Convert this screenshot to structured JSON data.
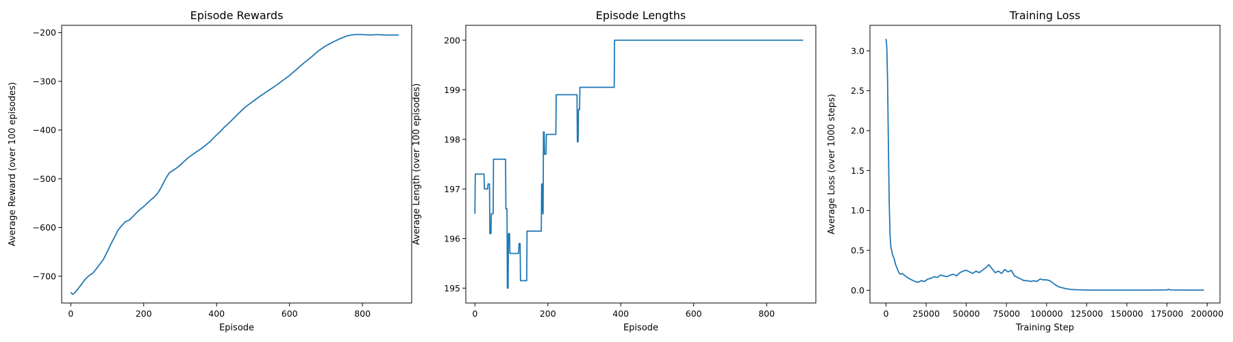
{
  "chart_data": [
    {
      "type": "line",
      "title": "Episode Rewards",
      "xlabel": "Episode",
      "ylabel": "Average Reward (over 100 episodes)",
      "xlim": [
        -25,
        935
      ],
      "ylim": [
        -755,
        -185
      ],
      "xticks": [
        0,
        200,
        400,
        600,
        800
      ],
      "yticks": [
        -700,
        -600,
        -500,
        -400,
        -300,
        -200
      ],
      "color": "#1f77b4",
      "x": [
        0,
        5,
        10,
        20,
        30,
        40,
        50,
        60,
        70,
        80,
        90,
        100,
        110,
        120,
        130,
        140,
        150,
        160,
        170,
        180,
        190,
        200,
        210,
        220,
        230,
        240,
        250,
        260,
        270,
        280,
        290,
        300,
        320,
        340,
        360,
        380,
        400,
        410,
        420,
        440,
        460,
        480,
        500,
        520,
        540,
        560,
        580,
        600,
        620,
        640,
        660,
        680,
        700,
        720,
        740,
        760,
        780,
        800,
        820,
        840,
        860,
        880,
        900
      ],
      "y": [
        -733,
        -737,
        -735,
        -726,
        -716,
        -706,
        -699,
        -694,
        -685,
        -675,
        -665,
        -650,
        -634,
        -620,
        -605,
        -596,
        -588,
        -585,
        -578,
        -570,
        -563,
        -557,
        -550,
        -543,
        -537,
        -528,
        -515,
        -500,
        -488,
        -483,
        -478,
        -472,
        -458,
        -447,
        -437,
        -425,
        -410,
        -403,
        -395,
        -381,
        -366,
        -352,
        -341,
        -330,
        -320,
        -310,
        -299,
        -288,
        -275,
        -262,
        -250,
        -237,
        -227,
        -219,
        -212,
        -206,
        -204,
        -204,
        -205,
        -204,
        -205,
        -205,
        -205
      ]
    },
    {
      "type": "line",
      "title": "Episode Lengths",
      "xlabel": "Episode",
      "ylabel": "Average Length (over 100 episodes)",
      "xlim": [
        -25,
        935
      ],
      "ylim": [
        194.7,
        200.3
      ],
      "xticks": [
        0,
        200,
        400,
        600,
        800
      ],
      "yticks": [
        195,
        196,
        197,
        198,
        199,
        200
      ],
      "color": "#1f77b4",
      "x": [
        0,
        1,
        25,
        26,
        35,
        36,
        40,
        41,
        44,
        45,
        50,
        51,
        84,
        85,
        88,
        89,
        91,
        92,
        95,
        96,
        98,
        99,
        120,
        121,
        124,
        125,
        142,
        143,
        182,
        183,
        185,
        186,
        187,
        188,
        190,
        191,
        195,
        196,
        222,
        223,
        280,
        281,
        283,
        284,
        287,
        288,
        382,
        383,
        900
      ],
      "y": [
        196.5,
        197.3,
        197.3,
        197.0,
        197.0,
        197.1,
        197.1,
        196.1,
        196.1,
        196.5,
        196.5,
        197.6,
        197.6,
        196.6,
        196.6,
        195.0,
        195.0,
        196.1,
        196.1,
        195.7,
        195.7,
        195.7,
        195.7,
        195.9,
        195.9,
        195.15,
        195.15,
        196.15,
        196.15,
        197.1,
        197.1,
        196.5,
        196.5,
        198.15,
        198.15,
        197.7,
        197.7,
        198.1,
        198.1,
        198.9,
        198.9,
        197.95,
        197.95,
        198.6,
        198.6,
        199.05,
        199.05,
        200.0,
        200.0
      ]
    },
    {
      "type": "line",
      "title": "Training Loss",
      "xlabel": "Training Step",
      "ylabel": "Average Loss (over 1000 steps)",
      "xlim": [
        -10000,
        208000
      ],
      "ylim": [
        -0.16,
        3.32
      ],
      "xticks": [
        0,
        25000,
        50000,
        75000,
        100000,
        125000,
        150000,
        175000,
        200000
      ],
      "yticks": [
        0.0,
        0.5,
        1.0,
        1.5,
        2.0,
        2.5,
        3.0
      ],
      "color": "#1f77b4",
      "x": [
        0,
        500,
        1000,
        1500,
        2000,
        2500,
        3000,
        4000,
        5000,
        6000,
        7000,
        8000,
        9000,
        10000,
        12000,
        14000,
        16000,
        18000,
        20000,
        22000,
        24000,
        26000,
        28000,
        30000,
        32000,
        34000,
        36000,
        38000,
        40000,
        42000,
        44000,
        46000,
        48000,
        50000,
        52000,
        54000,
        56000,
        58000,
        60000,
        62000,
        64000,
        66000,
        68000,
        70000,
        72000,
        74000,
        76000,
        78000,
        80000,
        82000,
        84000,
        86000,
        88000,
        90000,
        92000,
        94000,
        96000,
        98000,
        100000,
        102000,
        104000,
        106000,
        108000,
        110000,
        112000,
        115000,
        120000,
        125000,
        130000,
        140000,
        150000,
        160000,
        170000,
        175000,
        176000,
        177000,
        180000,
        190000,
        198000
      ],
      "y": [
        3.15,
        3.05,
        2.6,
        1.8,
        1.1,
        0.7,
        0.55,
        0.45,
        0.4,
        0.32,
        0.27,
        0.22,
        0.2,
        0.21,
        0.18,
        0.15,
        0.13,
        0.11,
        0.1,
        0.12,
        0.11,
        0.14,
        0.15,
        0.17,
        0.16,
        0.19,
        0.18,
        0.17,
        0.19,
        0.2,
        0.18,
        0.22,
        0.24,
        0.25,
        0.23,
        0.21,
        0.24,
        0.22,
        0.25,
        0.28,
        0.32,
        0.27,
        0.22,
        0.24,
        0.21,
        0.26,
        0.23,
        0.25,
        0.18,
        0.16,
        0.14,
        0.12,
        0.12,
        0.11,
        0.12,
        0.11,
        0.14,
        0.13,
        0.13,
        0.12,
        0.09,
        0.06,
        0.04,
        0.03,
        0.02,
        0.01,
        0.005,
        0.003,
        0.002,
        0.002,
        0.002,
        0.002,
        0.003,
        0.004,
        0.012,
        0.004,
        0.003,
        0.002,
        0.002
      ]
    }
  ]
}
